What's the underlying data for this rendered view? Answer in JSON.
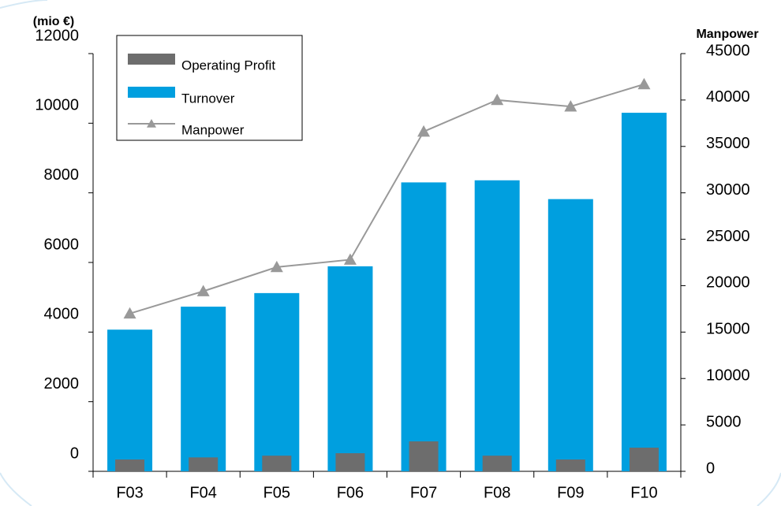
{
  "chart_data": {
    "type": "bar",
    "y_label": "(mio €)",
    "y2_label": "Manpower",
    "categories": [
      "F03",
      "F04",
      "F05",
      "F06",
      "F07",
      "F08",
      "F09",
      "F10"
    ],
    "series": [
      {
        "name": "Operating Profit",
        "color": "#6d6d6d",
        "values": [
          340,
          400,
          450,
          520,
          860,
          450,
          340,
          680
        ]
      },
      {
        "name": "Turnover",
        "color": "#009fdf",
        "values": [
          4070,
          4730,
          5120,
          5890,
          8300,
          8360,
          7820,
          10300
        ]
      },
      {
        "name": "Manpower",
        "color": "#999999",
        "type": "line",
        "axis": "y2",
        "values": [
          17000,
          19400,
          22000,
          22800,
          36600,
          40000,
          39300,
          41700
        ]
      }
    ],
    "ylim": [
      0,
      12000
    ],
    "yticks": [
      0,
      2000,
      4000,
      6000,
      8000,
      10000,
      12000
    ],
    "y2lim": [
      0,
      45000
    ],
    "y2ticks": [
      0,
      5000,
      10000,
      15000,
      20000,
      25000,
      30000,
      35000,
      40000,
      45000
    ],
    "grid": false
  }
}
